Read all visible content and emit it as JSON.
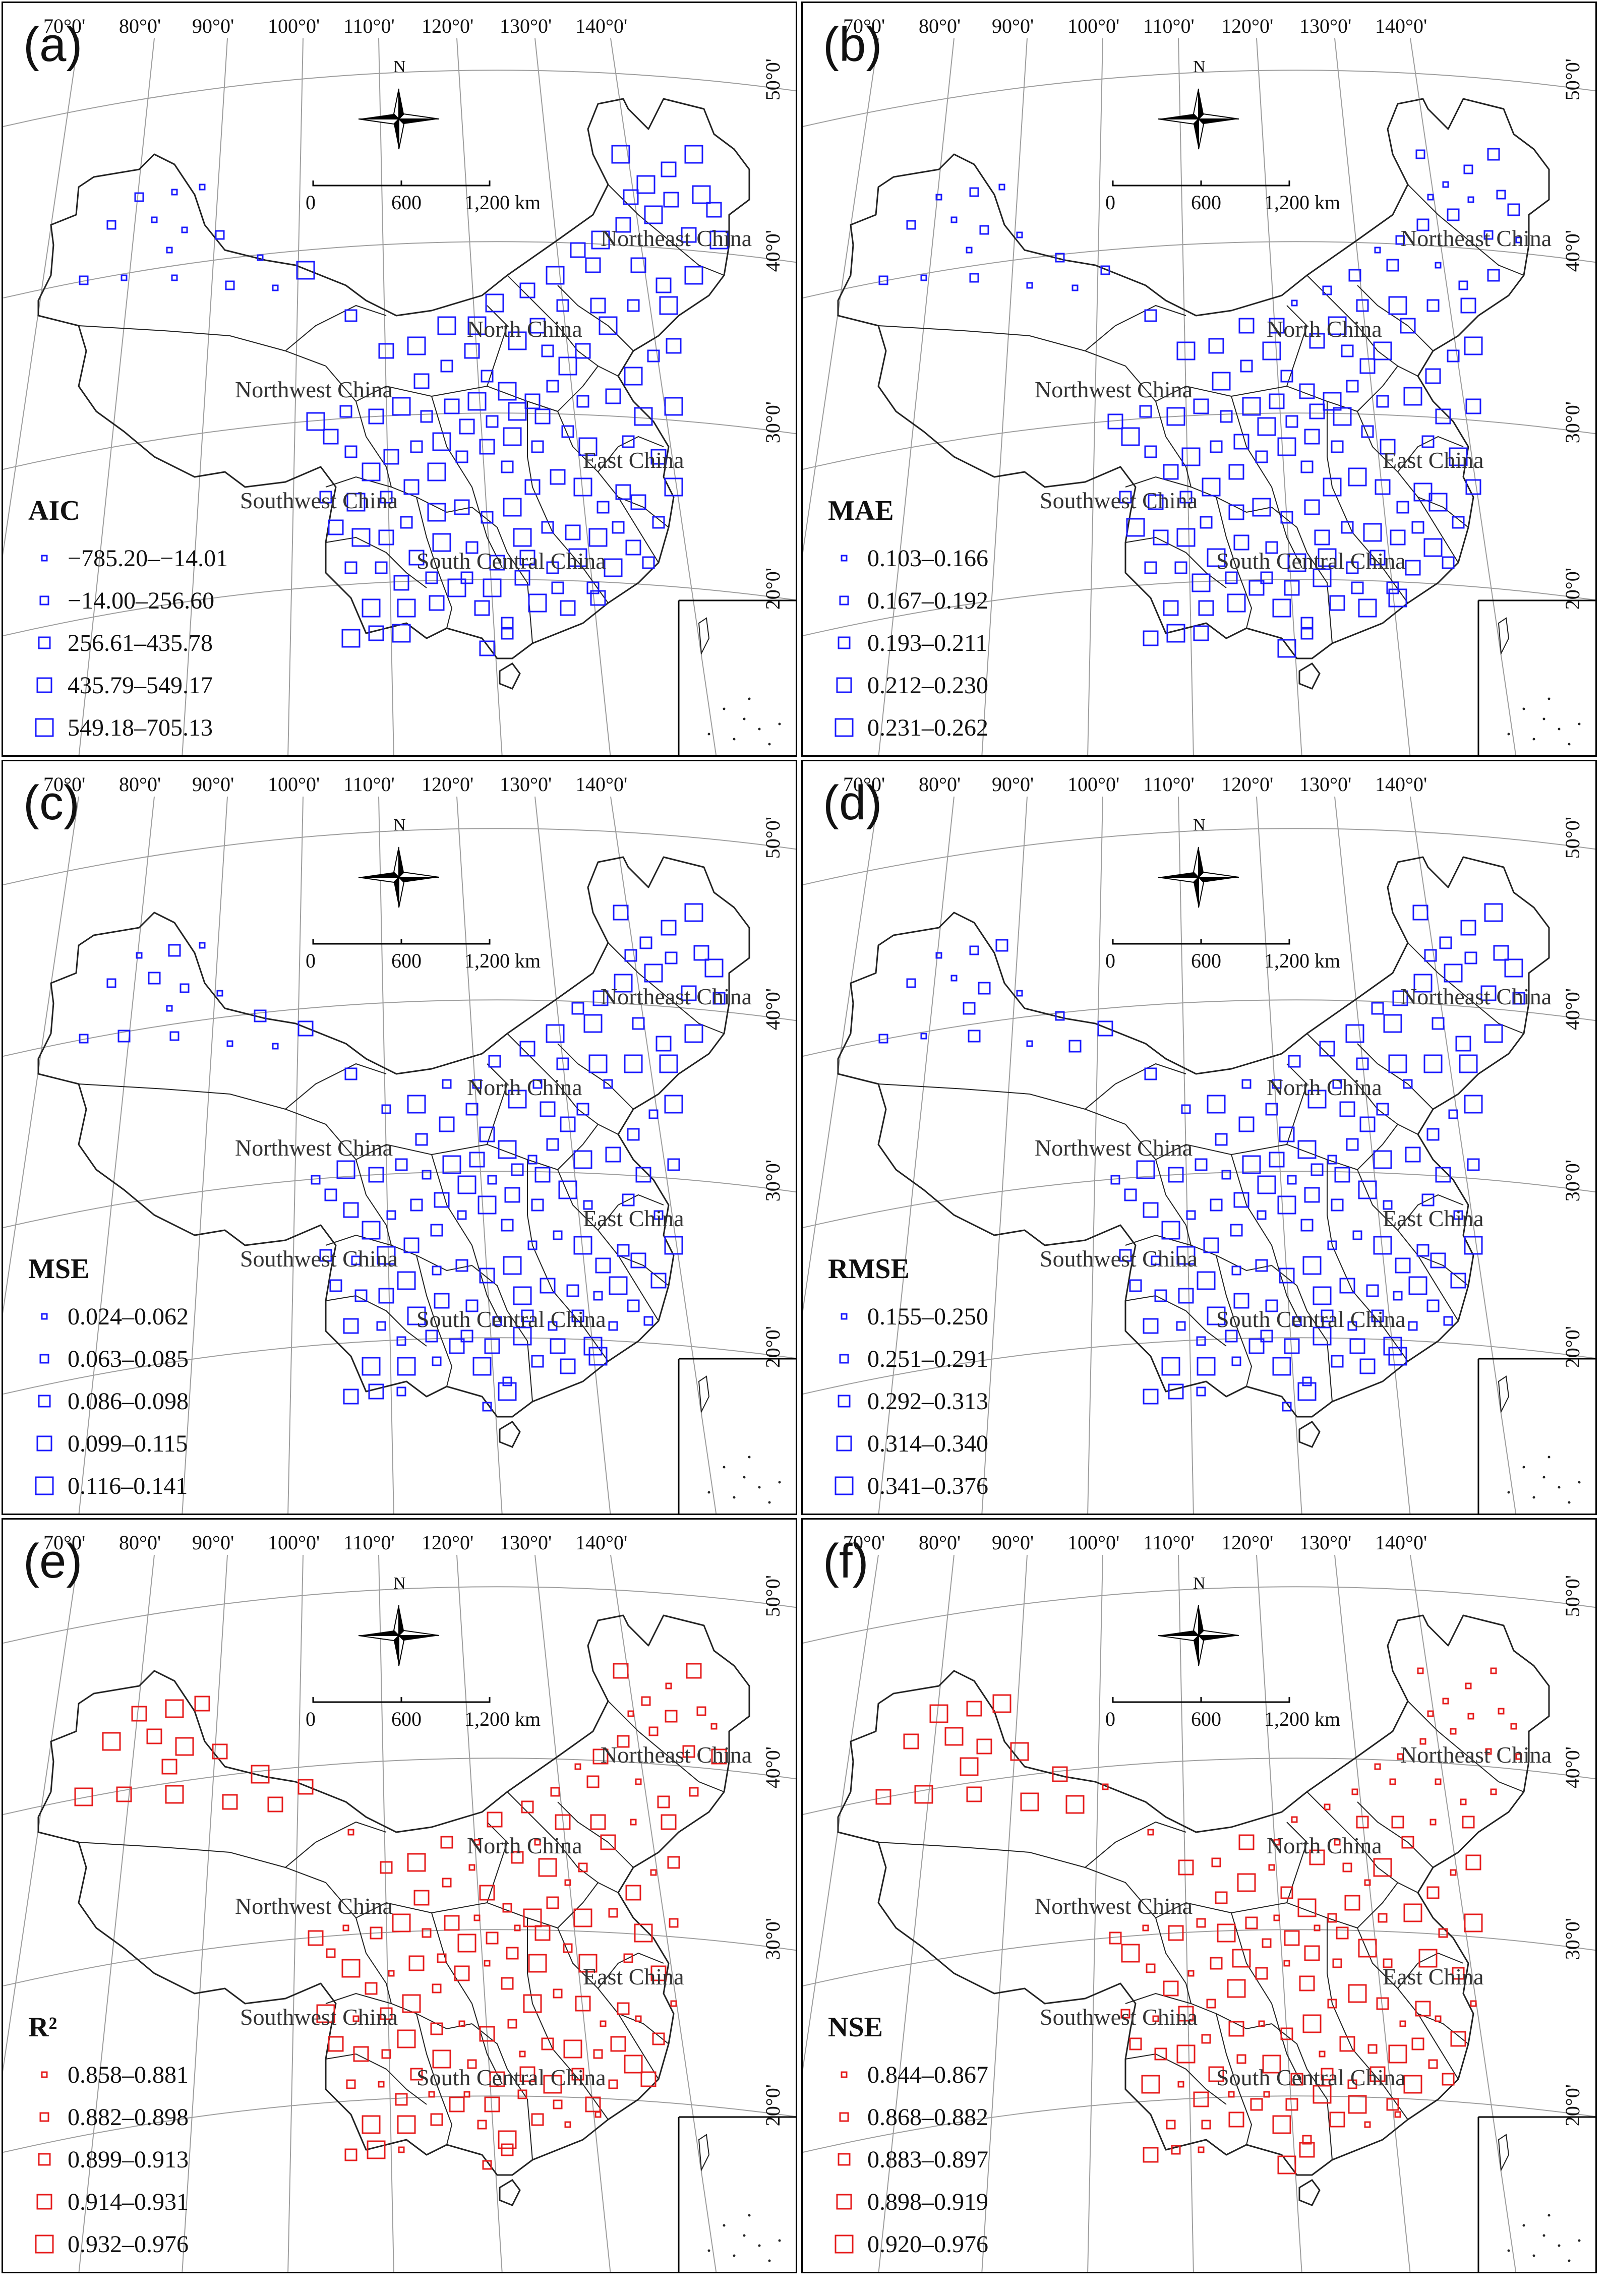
{
  "figure": {
    "colors": {
      "blue": "#1a1aff",
      "red": "#e61c1c",
      "outline": "#222222",
      "grid": "#9e9e9e"
    },
    "lon_ticks": [
      "70°0'",
      "80°0'",
      "90°0'",
      "100°0'",
      "110°0'",
      "120°0'",
      "130°0'",
      "140°0'"
    ],
    "lat_ticks": [
      "50°0'",
      "40°0'",
      "30°0'",
      "20°0'"
    ],
    "north_label": "N",
    "north_icon": "north-arrow-compass-icon",
    "scale_labels": [
      "0",
      "600",
      "1,200 km"
    ],
    "regions": [
      "Northeast China",
      "North China",
      "Northwest China",
      "East China",
      "Southwest China",
      "South Central China"
    ]
  },
  "panels": [
    {
      "label": "(a)",
      "metric": "AIC",
      "color": "blue",
      "classes": [
        "−785.20–−14.01",
        "−14.00–256.60",
        "256.61–435.78",
        "435.79–549.17",
        "549.18–705.13"
      ]
    },
    {
      "label": "(b)",
      "metric": "MAE",
      "color": "blue",
      "classes": [
        "0.103–0.166",
        "0.167–0.192",
        "0.193–0.211",
        "0.212–0.230",
        "0.231–0.262"
      ]
    },
    {
      "label": "(c)",
      "metric": "MSE",
      "color": "blue",
      "classes": [
        "0.024–0.062",
        "0.063–0.085",
        "0.086–0.098",
        "0.099–0.115",
        "0.116–0.141"
      ]
    },
    {
      "label": "(d)",
      "metric": "RMSE",
      "color": "blue",
      "classes": [
        "0.155–0.250",
        "0.251–0.291",
        "0.292–0.313",
        "0.314–0.340",
        "0.341–0.376"
      ]
    },
    {
      "label": "(e)",
      "metric": "R²",
      "color": "red",
      "classes": [
        "0.858–0.881",
        "0.882–0.898",
        "0.899–0.913",
        "0.914–0.931",
        "0.932–0.976"
      ]
    },
    {
      "label": "(f)",
      "metric": "NSE",
      "color": "red",
      "classes": [
        "0.844–0.867",
        "0.868–0.882",
        "0.883–0.897",
        "0.898–0.919",
        "0.920–0.976"
      ]
    }
  ]
}
